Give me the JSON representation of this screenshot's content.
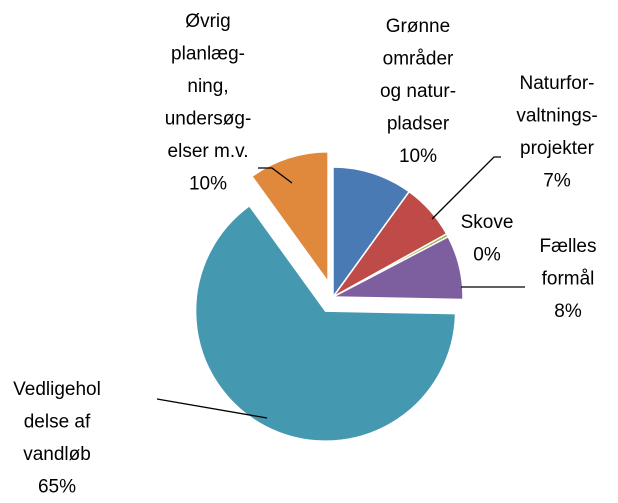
{
  "chart_data": {
    "type": "pie",
    "categories": [
      "Grønne\nområder\nog natur-\npladser",
      "Naturfor-\nvaltnings-\nprojekter",
      "Skove",
      "Fælles\nformål",
      "Vedligehol\ndelse af\nvandløb",
      "Øvrig\nplanlæg-\nning,\nundersøg-\nelser m.v."
    ],
    "values": [
      10,
      7,
      0.4,
      8,
      65,
      10
    ],
    "value_labels": [
      "10%",
      "7%",
      "0%",
      "8%",
      "65%",
      "10%"
    ],
    "colors": [
      "#4a7ab4",
      "#be4b48",
      "#98b954",
      "#7d5fa0",
      "#4498b0",
      "#e0883c"
    ],
    "explode": [
      false,
      false,
      false,
      false,
      true,
      true
    ]
  }
}
